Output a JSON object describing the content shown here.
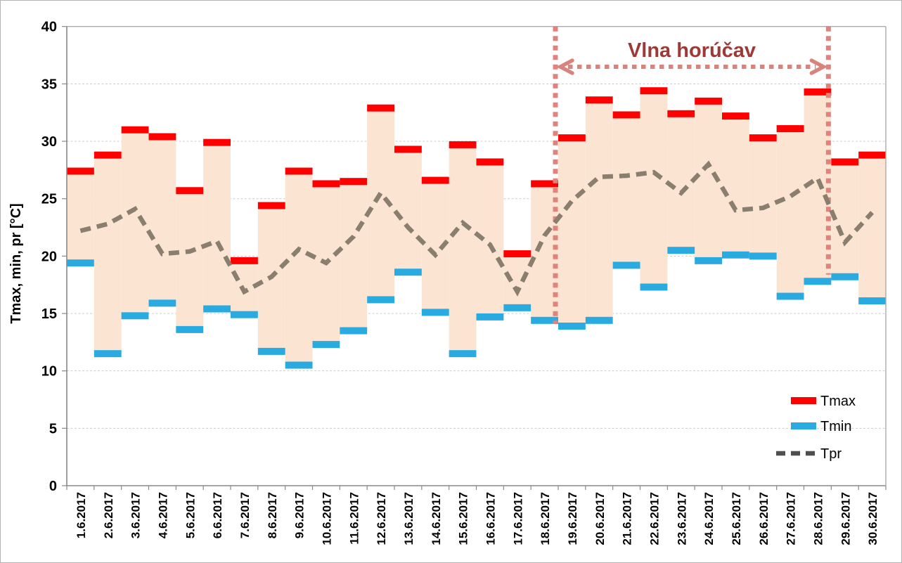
{
  "chart_data": {
    "type": "bar",
    "subtype": "floating-temperature-range-columns-with-average-line",
    "title": "",
    "categories": [
      "1.6.2017",
      "2.6.2017",
      "3.6.2017",
      "4.6.2017",
      "5.6.2017",
      "6.6.2017",
      "7.6.2017",
      "8.6.2017",
      "9.6.2017",
      "10.6.2017",
      "11.6.2017",
      "12.6.2017",
      "13.6.2017",
      "14.6.2017",
      "15.6.2017",
      "16.6.2017",
      "17.6.2017",
      "18.6.2017",
      "19.6.2017",
      "20.6.2017",
      "21.6.2017",
      "22.6.2017",
      "23.6.2017",
      "24.6.2017",
      "25.6.2017",
      "26.6.2017",
      "27.6.2017",
      "28.6.2017",
      "29.6.2017",
      "30.6.2017"
    ],
    "series": [
      {
        "name": "Tmax",
        "marker": "thick-dash",
        "color": "#fe0000",
        "values": [
          27.4,
          28.8,
          31.0,
          30.4,
          25.7,
          29.9,
          19.6,
          24.4,
          27.4,
          26.3,
          26.5,
          32.9,
          29.3,
          26.6,
          29.7,
          28.2,
          20.2,
          26.3,
          30.3,
          33.6,
          32.3,
          34.4,
          32.4,
          33.5,
          32.2,
          30.3,
          31.1,
          34.3,
          28.2,
          28.8
        ]
      },
      {
        "name": "Tmin",
        "marker": "thick-dash",
        "color": "#29abe2",
        "values": [
          19.4,
          11.5,
          14.8,
          15.9,
          13.6,
          15.4,
          14.9,
          11.7,
          10.5,
          12.3,
          13.5,
          16.2,
          18.6,
          15.1,
          11.5,
          14.7,
          15.5,
          14.4,
          13.9,
          14.4,
          19.2,
          17.3,
          20.5,
          19.6,
          20.1,
          20.0,
          16.5,
          17.8,
          18.2,
          16.1
        ]
      },
      {
        "name": "Tpr",
        "marker": "dashed-line",
        "color": "#8a7e6e",
        "legend_color": "#4f4f4f",
        "values": [
          22.2,
          22.8,
          24.1,
          20.2,
          20.4,
          21.3,
          16.9,
          18.2,
          20.6,
          19.4,
          21.7,
          25.5,
          22.5,
          20.1,
          22.9,
          21.0,
          16.9,
          21.8,
          24.8,
          26.9,
          27.0,
          27.3,
          25.5,
          28.0,
          24.0,
          24.2,
          25.2,
          26.8,
          21.2,
          23.8
        ]
      }
    ],
    "range_fill_color": "#fbe5d2",
    "xlabel": "",
    "ylabel": "Tmax, min, pr [°C]",
    "ylim": [
      0,
      40
    ],
    "yticks": [
      0,
      5,
      10,
      15,
      20,
      25,
      30,
      35,
      40
    ],
    "grid": true,
    "legend_position": "inside-right"
  },
  "annotations": {
    "heatwave_label": "Vlna horúčav",
    "heatwave_color": "#9c3a38",
    "arrow_color": "#d9837d",
    "guide_line_color": "#e0837d",
    "heatwave_start_index": 18,
    "heatwave_end_index": 28
  }
}
